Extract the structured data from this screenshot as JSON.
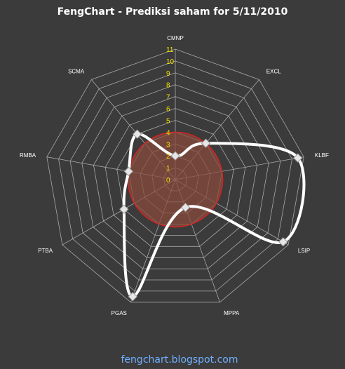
{
  "colors": {
    "background": "#3b3b3b",
    "grid": "#a8a8a8",
    "title": "#ffffff",
    "category_label": "#ffffff",
    "tick_label": "#f2e200",
    "circle_fill": "#8a4b3c",
    "circle_stroke": "#d42323",
    "series_line": "#ffffff",
    "footer": "#6fb0ff"
  },
  "chart_data": {
    "type": "radar",
    "title": "FengChart - Prediksi saham for 5/11/2010",
    "categories": [
      "CMNP",
      "EXCL",
      "KLBF",
      "LSIP",
      "MPPA",
      "PGAS",
      "PTBA",
      "RMBA",
      "SCMA"
    ],
    "ticks": [
      "0",
      "1",
      "2",
      "3",
      "4",
      "5",
      "6",
      "7",
      "8",
      "9",
      "10",
      "11"
    ],
    "rlim": [
      0,
      11
    ],
    "grid": true,
    "reference_circle": {
      "value": 4
    },
    "series": [
      {
        "values": [
          2,
          4,
          10.5,
          10.5,
          2.5,
          10.5,
          5,
          4,
          5
        ],
        "marker": "diamond"
      }
    ]
  },
  "footer": {
    "text": "fengchart.blogspot.com"
  }
}
